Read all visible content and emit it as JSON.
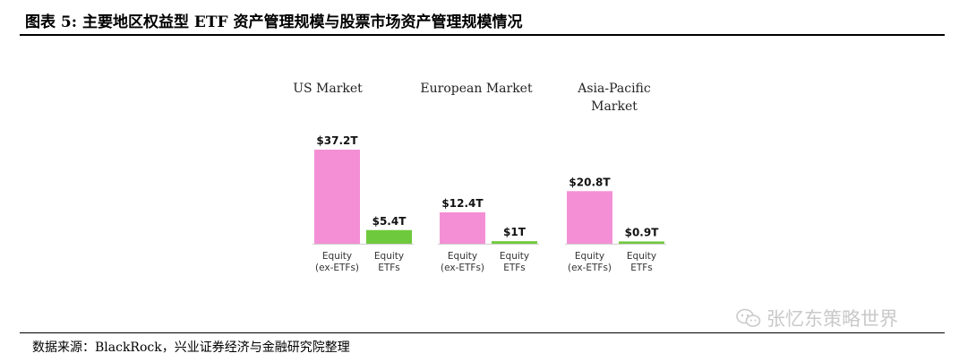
{
  "header": {
    "title": "图表 5:  主要地区权益型 ETF 资产管理规模与股票市场资产管理规模情况"
  },
  "footer": {
    "source": "数据来源：BlackRock，兴业证券经济与金融研究院整理"
  },
  "watermark": {
    "text": "张忆东策略世界",
    "icon": "wechat-icon"
  },
  "colors": {
    "equity": "#f48fd6",
    "etf": "#6fc93c"
  },
  "chart_data": {
    "type": "bar",
    "unit": "T (USD trillion)",
    "groups": [
      {
        "title_lines": [
          "US Market"
        ],
        "bars": [
          {
            "label_lines": [
              "Equity",
              "(ex-ETFs)"
            ],
            "value": 37.2,
            "value_label": "$37.2T",
            "kind": "equity"
          },
          {
            "label_lines": [
              "Equity",
              "ETFs"
            ],
            "value": 5.4,
            "value_label": "$5.4T",
            "kind": "etf"
          }
        ]
      },
      {
        "title_lines": [
          "European Market"
        ],
        "bars": [
          {
            "label_lines": [
              "Equity",
              "(ex-ETFs)"
            ],
            "value": 12.4,
            "value_label": "$12.4T",
            "kind": "equity"
          },
          {
            "label_lines": [
              "Equity",
              "ETFs"
            ],
            "value": 1,
            "value_label": "$1T",
            "kind": "etf"
          }
        ]
      },
      {
        "title_lines": [
          "Asia-Pacific",
          "Market"
        ],
        "bars": [
          {
            "label_lines": [
              "Equity",
              "(ex-ETFs)"
            ],
            "value": 20.8,
            "value_label": "$20.8T",
            "kind": "equity"
          },
          {
            "label_lines": [
              "Equity",
              "ETFs"
            ],
            "value": 0.9,
            "value_label": "$0.9T",
            "kind": "etf"
          }
        ]
      }
    ]
  }
}
